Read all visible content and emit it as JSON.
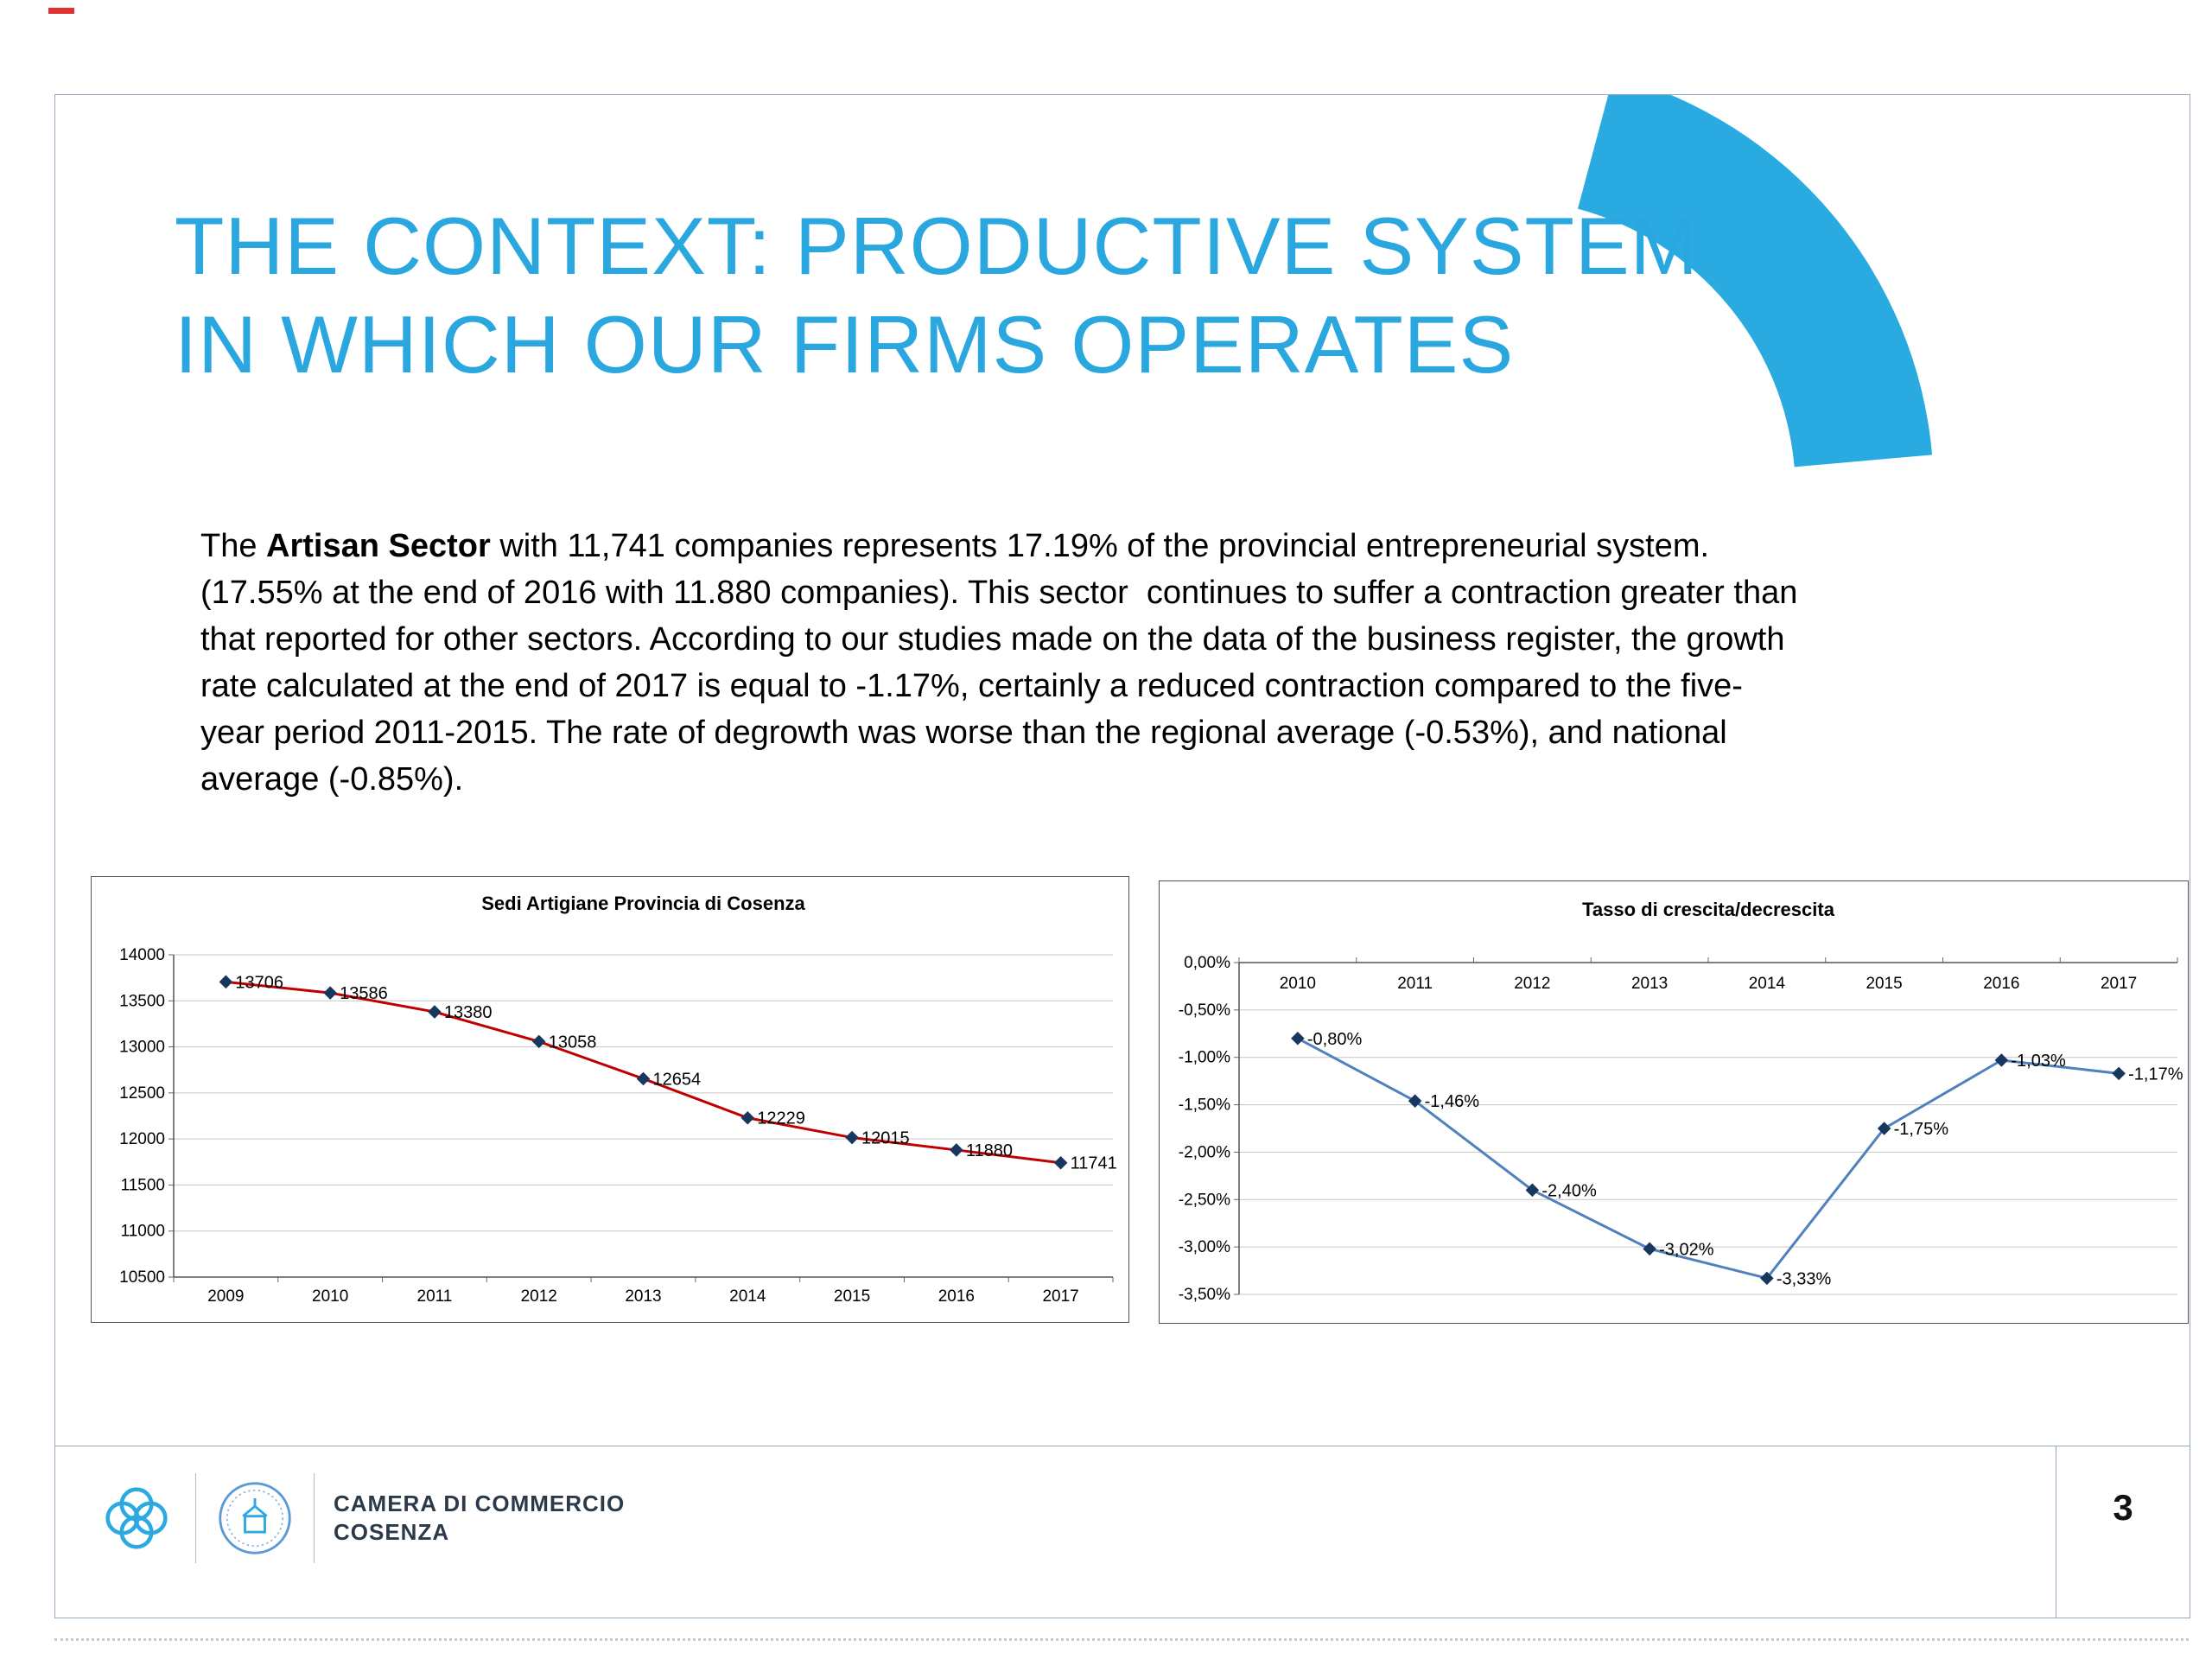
{
  "slide": {
    "title_line1": "THE CONTEXT: PRODUCTIVE SYSTEM",
    "title_line2": "IN WHICH OUR FIRMS OPERATES",
    "accent_color": "#29ABE2",
    "page_number": "3"
  },
  "paragraph": {
    "line1_pre": "The ",
    "line1_bold": "Artisan Sector",
    "line1_post": " with 11,741 companies represents 17.19% of the provincial entrepreneurial system.",
    "line2": "(17.55% at the end of 2016 with 11.880 companies). This sector  continues to suffer a contraction greater than",
    "line3": "that reported for other sectors. According to our studies made on the data of the business register, the growth",
    "line4": "rate calculated at the end of 2017 is equal to -1.17%, certainly a reduced contraction compared to the five-",
    "line5": "year period 2011-2015. The rate of degrowth was worse than the regional average (-0.53%), and national",
    "line6": "average (-0.85%)."
  },
  "footer": {
    "icons": [
      "chamber-knot-logo-icon",
      "chamber-emblem-logo-icon"
    ],
    "org_line1": "CAMERA DI COMMERCIO",
    "org_line2": "COSENZA",
    "logo_color": "#2BA9E0"
  },
  "chart_data": [
    {
      "type": "line",
      "title": "Sedi Artigiane Provincia di Cosenza",
      "categories": [
        "2009",
        "2010",
        "2011",
        "2012",
        "2013",
        "2014",
        "2015",
        "2016",
        "2017"
      ],
      "values": [
        13706,
        13586,
        13380,
        13058,
        12654,
        12229,
        12015,
        11880,
        11741
      ],
      "value_labels": [
        "13706",
        "13586",
        "13380",
        "13058",
        "12654",
        "12229",
        "12015",
        "11880",
        "11741"
      ],
      "ylim": [
        10500,
        14000
      ],
      "ytick_step": 500,
      "ytick_labels": [
        "14000",
        "13500",
        "13000",
        "12500",
        "12000",
        "11500",
        "11000",
        "10500"
      ],
      "xlabel": "",
      "ylabel": "",
      "grid": true,
      "legend": "none",
      "line_color": "#C00000",
      "marker_color": "#17375E",
      "axis_position": "bottom"
    },
    {
      "type": "line",
      "title": "Tasso di crescita/decrescita",
      "categories": [
        "2010",
        "2011",
        "2012",
        "2013",
        "2014",
        "2015",
        "2016",
        "2017"
      ],
      "values": [
        -0.8,
        -1.46,
        -2.4,
        -3.02,
        -3.33,
        -1.75,
        -1.03,
        -1.17
      ],
      "value_labels": [
        "-0,80%",
        "-1,46%",
        "-2,40%",
        "-3,02%",
        "-3,33%",
        "-1,75%",
        "-1,03%",
        "-1,17%"
      ],
      "ylim": [
        -3.5,
        0.0
      ],
      "ytick_step": 0.5,
      "ytick_labels": [
        "0,00%",
        "-0,50%",
        "-1,00%",
        "-1,50%",
        "-2,00%",
        "-2,50%",
        "-3,00%",
        "-3,50%"
      ],
      "xlabel": "",
      "ylabel": "",
      "grid": true,
      "legend": "none",
      "line_color": "#4F81BD",
      "marker_color": "#17375E",
      "axis_position": "top"
    }
  ]
}
